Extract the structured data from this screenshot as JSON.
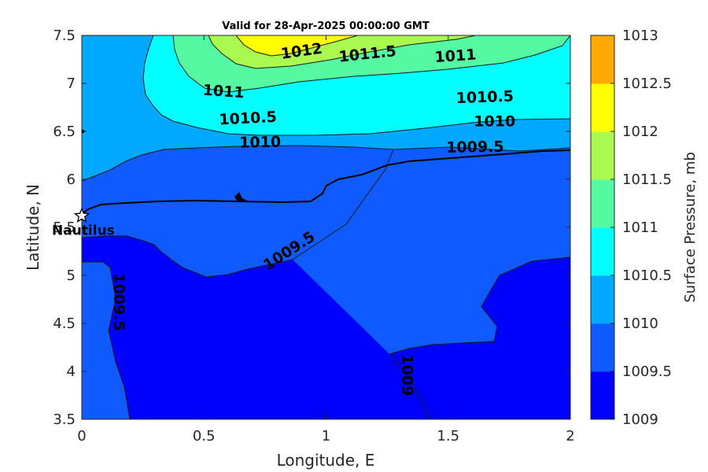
{
  "chart_data": {
    "type": "contour",
    "title": "Valid for 28-Apr-2025 00:00:00 GMT",
    "xlabel": "Longitude, E",
    "ylabel": "Latitude, N",
    "xlim": [
      0,
      2
    ],
    "ylim": [
      3.5,
      7.5
    ],
    "x_ticks": [
      "0",
      "0.5",
      "1",
      "1.5",
      "2"
    ],
    "y_ticks": [
      "3.5",
      "4",
      "4.5",
      "5",
      "5.5",
      "6",
      "6.5",
      "7",
      "7.5"
    ],
    "colorbar": {
      "label": "Surface Pressure, mb",
      "levels": [
        1009,
        1009.5,
        1010,
        1010.5,
        1011,
        1011.5,
        1012,
        1012.5,
        1013
      ],
      "tick_labels": [
        "1009",
        "1009.5",
        "1010",
        "1010.5",
        "1011",
        "1011.5",
        "1012",
        "1012.5",
        "1013"
      ],
      "colors": [
        "#0000ff",
        "#0f5bff",
        "#00a8ff",
        "#00ffff",
        "#55f9a2",
        "#aaf950",
        "#ffff00",
        "#ffaa00",
        "#ff5500"
      ]
    },
    "contour_labels": [
      {
        "text": "1012",
        "lon": 0.9,
        "lat": 7.33
      },
      {
        "text": "1011.5",
        "lon": 1.17,
        "lat": 7.3
      },
      {
        "text": "1011",
        "lon": 1.53,
        "lat": 7.28
      },
      {
        "text": "1011",
        "lon": 0.58,
        "lat": 6.91
      },
      {
        "text": "1010.5",
        "lon": 0.68,
        "lat": 6.63
      },
      {
        "text": "1010.5",
        "lon": 1.65,
        "lat": 6.85
      },
      {
        "text": "1010",
        "lon": 0.73,
        "lat": 6.38
      },
      {
        "text": "1010",
        "lon": 1.69,
        "lat": 6.6
      },
      {
        "text": "1009.5",
        "lon": 1.61,
        "lat": 6.33
      },
      {
        "text": "1009.5",
        "lon": 0.85,
        "lat": 5.25
      },
      {
        "text": "1009.5",
        "lon": 0.15,
        "lat": 4.72
      },
      {
        "text": "1009",
        "lon": 1.33,
        "lat": 3.96
      }
    ],
    "marker": {
      "name": "Nautilus",
      "lon": 0.0,
      "lat": 5.62,
      "symbol": "star"
    }
  }
}
